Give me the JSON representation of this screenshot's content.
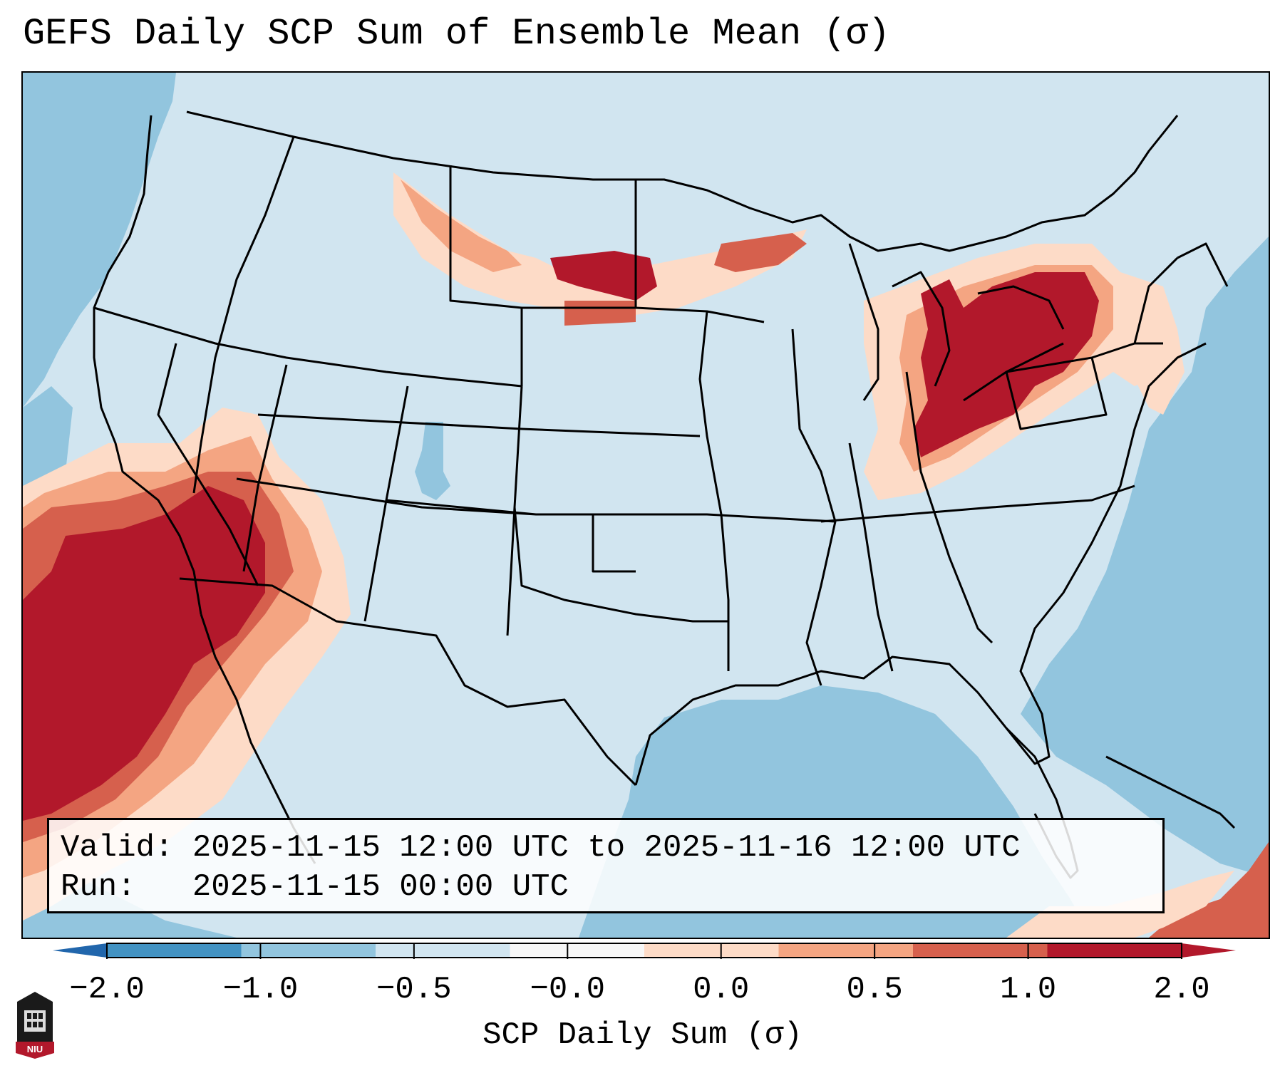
{
  "title": "GEFS Daily SCP Sum of Ensemble Mean (σ)",
  "info_box": {
    "valid_line": "Valid: 2025-11-15 12:00 UTC to 2025-11-16 12:00 UTC",
    "run_line": "Run:   2025-11-15 00:00 UTC"
  },
  "colorbar": {
    "label": "SCP Daily Sum (σ)",
    "ticks": [
      "−2.0",
      "−1.0",
      "−0.5",
      "−0.0",
      "0.0",
      "0.5",
      "1.0",
      "2.0"
    ],
    "colors": [
      "#4393c3",
      "#92c5de",
      "#d1e5f0",
      "#f7f7f7",
      "#fddbc7",
      "#f4a582",
      "#d6604d",
      "#b2182b"
    ],
    "extend_low_color": "#2166ac",
    "extend_high_color": "#b2182b"
  },
  "map": {
    "region": "Contiguous United States",
    "background_color": "#d1e5f0",
    "ocean_color": "#92c5de",
    "high_color": "#b2182b"
  },
  "logo": {
    "text": "NIU",
    "icon": "university-tower-icon"
  }
}
